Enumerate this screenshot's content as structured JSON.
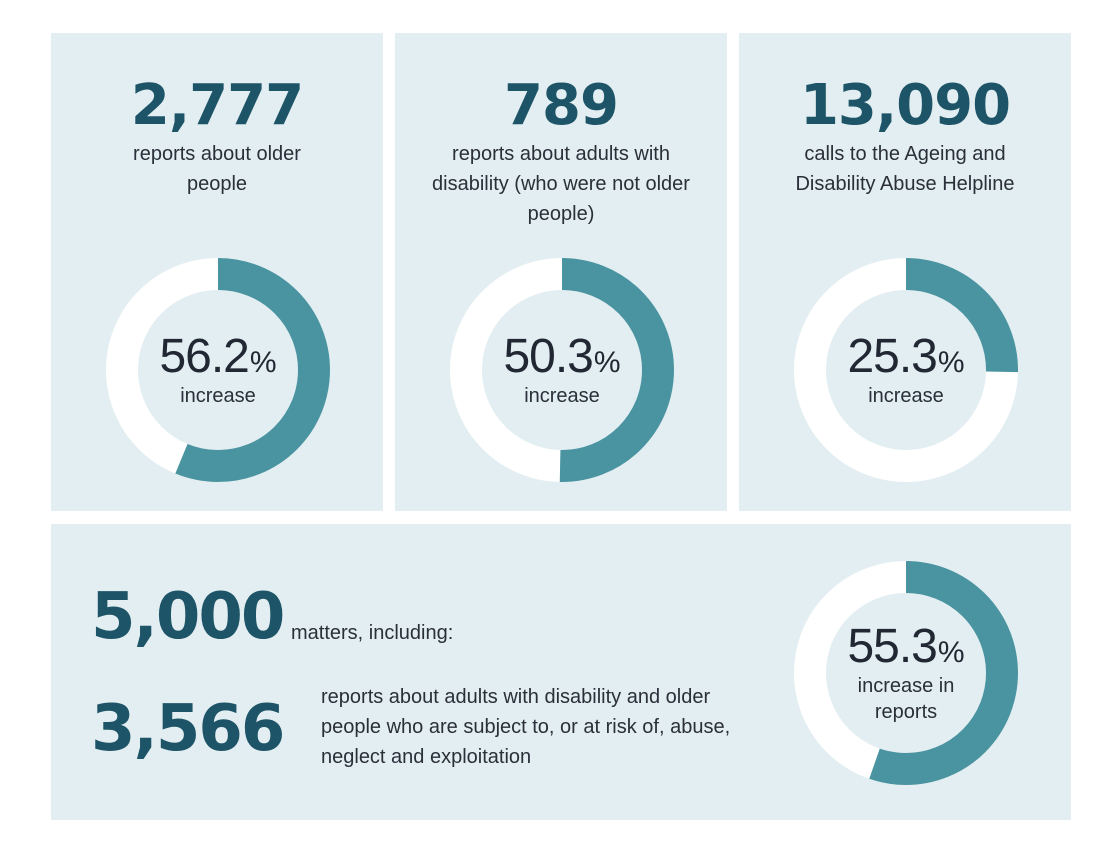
{
  "colors": {
    "panel_bg": "#e2eef1",
    "accent": "#4a93a0",
    "ring_bg": "#ffffff",
    "number": "#1d5467",
    "text": "#2a2f3a"
  },
  "stats": [
    {
      "number": "2,777",
      "description": "reports about older people",
      "percent": "56.2",
      "percent_symbol": "%",
      "percent_label": "increase"
    },
    {
      "number": "789",
      "description": "reports about adults with disability (who were not older people)",
      "percent": "50.3",
      "percent_symbol": "%",
      "percent_label": "increase"
    },
    {
      "number": "13,090",
      "description": "calls to the Ageing and Disability Abuse Helpline",
      "percent": "25.3",
      "percent_symbol": "%",
      "percent_label": "increase"
    }
  ],
  "summary": {
    "total_number": "5,000",
    "total_label": "matters, including:",
    "sub_number": "3,566",
    "sub_description": "reports about adults with disability and older people who are subject to, or at risk of, abuse, neglect and exploitation",
    "percent": "55.3",
    "percent_symbol": "%",
    "percent_label": "increase in reports"
  },
  "chart_data": [
    {
      "type": "pie",
      "values": [
        56.2,
        43.8
      ]
    },
    {
      "type": "pie",
      "values": [
        50.3,
        49.7
      ]
    },
    {
      "type": "pie",
      "values": [
        25.3,
        74.7
      ]
    },
    {
      "type": "pie",
      "values": [
        55.3,
        44.7
      ]
    }
  ]
}
